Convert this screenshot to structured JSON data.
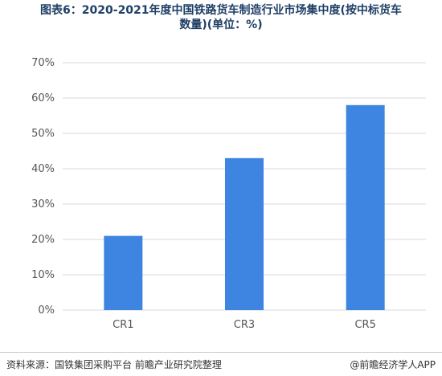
{
  "title_line1": "图表6：2020-2021年度中国铁路货车制造行业市场集中度(按中标货车",
  "title_line2": "数量)(单位：%)",
  "source": "资料来源：国铁集团采购平台 前瞻产业研究院整理",
  "brand": "@前瞻经济学人APP",
  "colors": {
    "bar": "#3d85e0",
    "title": "#1f3f66",
    "grid": "#d9d9d9"
  },
  "chart_data": {
    "type": "bar",
    "categories": [
      "CR1",
      "CR3",
      "CR5"
    ],
    "values": [
      21,
      43,
      58
    ],
    "yticks": [
      "0%",
      "10%",
      "20%",
      "30%",
      "40%",
      "50%",
      "60%",
      "70%"
    ],
    "ylim": [
      0,
      70
    ],
    "grid": true
  }
}
